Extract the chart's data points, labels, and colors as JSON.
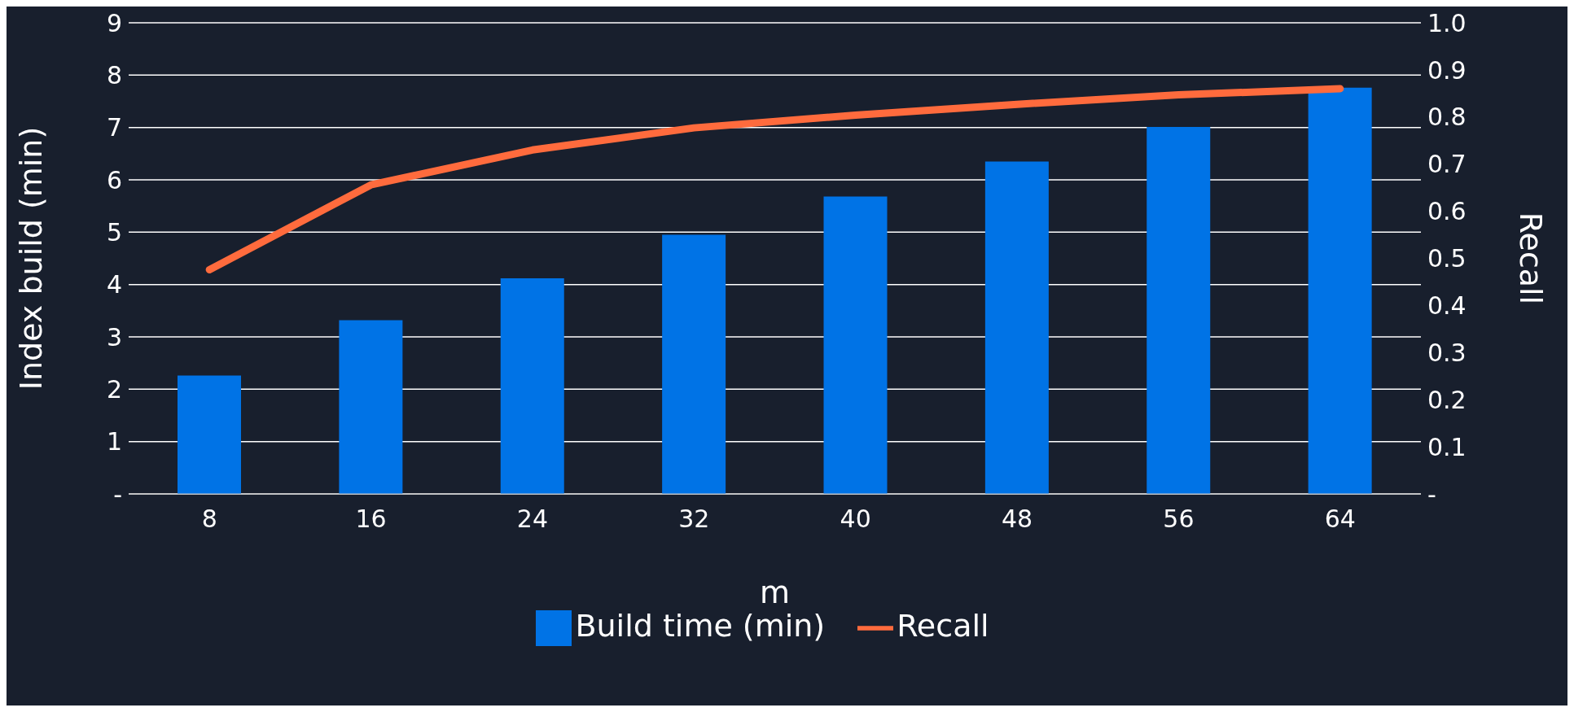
{
  "chart_data": {
    "type": "bar",
    "xlabel": "m",
    "ylabel": "Index build (min)",
    "y2label": "Recall",
    "categories": [
      "8",
      "16",
      "24",
      "32",
      "40",
      "48",
      "56",
      "64"
    ],
    "series": [
      {
        "name": "Build time (min)",
        "color": "#0073e6",
        "values": [
          2.26,
          3.32,
          4.12,
          4.95,
          5.68,
          6.35,
          7.01,
          7.76
        ]
      },
      {
        "name": "Recall",
        "type": "line",
        "axis": "y2",
        "color": "#ff6b3d",
        "values": [
          0.476,
          0.656,
          0.73,
          0.777,
          0.804,
          0.827,
          0.847,
          0.86
        ]
      }
    ],
    "ylim": [
      0,
      9
    ],
    "yticks": [
      {
        "value": 0,
        "label": "-"
      },
      1,
      2,
      3,
      4,
      5,
      6,
      7,
      8,
      9
    ],
    "y2lim": [
      0,
      1
    ],
    "y2ticks": [
      {
        "value": 0,
        "label": "-"
      },
      0.1,
      0.2,
      0.3,
      0.4,
      0.5,
      0.6,
      0.7,
      0.8,
      0.9,
      {
        "value": 1,
        "label": "1.0"
      }
    ],
    "grid": "y",
    "legend": "bottom",
    "marker": "none",
    "line_style": "solid"
  }
}
